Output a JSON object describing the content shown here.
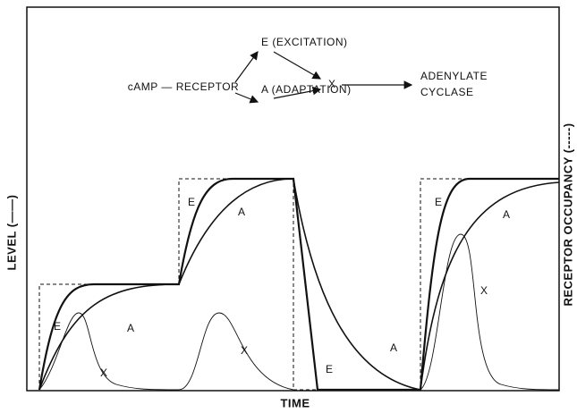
{
  "scheme": {
    "receptor": "cAMP — RECEPTOR",
    "excitation": "E (EXCITATION)",
    "adaptation": "A (ADAPTATION)",
    "x": "X",
    "target_line1": "ADENYLATE",
    "target_line2": "CYCLASE"
  },
  "axes": {
    "x_label": "TIME",
    "y_label": "LEVEL (——)",
    "y2_label": "RECEPTOR OCCUPANCY (-----)"
  },
  "curve_labels": [
    "E",
    "A",
    "X",
    "E",
    "A",
    "X",
    "E",
    "A",
    "E",
    "A",
    "X"
  ]
}
